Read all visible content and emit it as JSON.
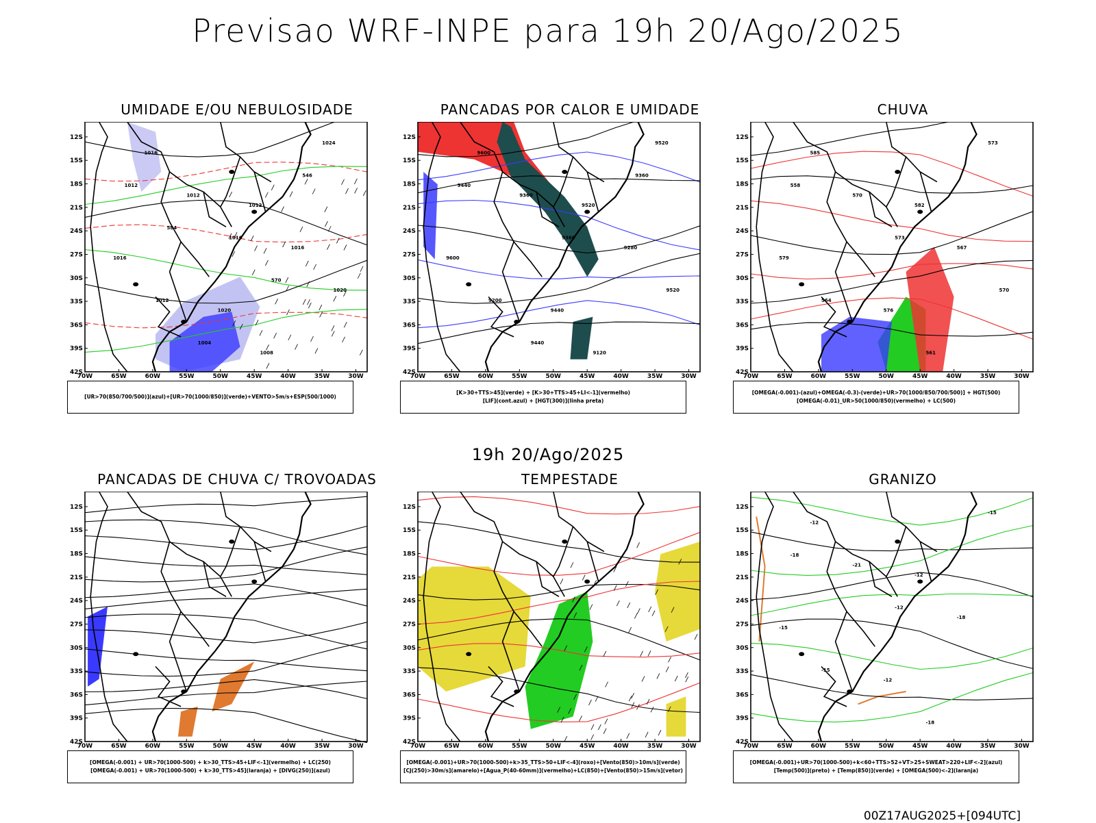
{
  "header": {
    "title": "Previsao WRF-INPE  para 19h 20/Ago/2025",
    "subtitle": "19h 20/Ago/2025",
    "footer": "00Z17AUG2025+[094UTC]"
  },
  "axes": {
    "lat_labels": [
      "12S",
      "15S",
      "18S",
      "21S",
      "24S",
      "27S",
      "30S",
      "33S",
      "36S",
      "39S",
      "42S"
    ],
    "lon_labels": [
      "70W",
      "65W",
      "60W",
      "55W",
      "50W",
      "45W",
      "40W",
      "35W",
      "30W"
    ]
  },
  "panels": [
    {
      "id": "umidade",
      "title": "UMIDADE E/OU NEBULOSIDADE",
      "legend": [
        "[UR>70(850/700/500)](azul)+[UR>70(1000/850)](verde)+VENTO>5m/s+ESP(500/1000)"
      ],
      "labels": [
        "1016",
        "1012",
        "1016",
        "1020",
        "1024",
        "1012",
        "1016",
        "1012",
        "1008",
        "1012",
        "1016",
        "1020",
        "1004",
        "546",
        "584",
        "570"
      ]
    },
    {
      "id": "pancadas-calor",
      "title": "PANCADAS POR CALOR E UMIDADE",
      "legend": [
        "[K>30+TTS>45](verde) + [K>30+TTS>45+LI<-1](vermelho)",
        "[LIF](cont.azul) + [HGT(300)](linha preta)"
      ],
      "labels": [
        "9600",
        "9520",
        "9600",
        "9440",
        "9520",
        "9360",
        "9280",
        "9200",
        "9120",
        "9440",
        "9360",
        "9520",
        "9440",
        "9360"
      ]
    },
    {
      "id": "chuva",
      "title": "CHUVA",
      "legend": [
        "[OMEGA(-0.001)-(azul)+OMEGA(-0.3)-(verde)+UR>70(1000/850/700/500)] + HGT(500)",
        "[OMEGA(-0.01)_UR>50(1000/850)(vermelho) + LC(500)"
      ],
      "labels": [
        "585",
        "582",
        "579",
        "576",
        "573",
        "570",
        "567",
        "564",
        "561",
        "558",
        "573",
        "570"
      ]
    },
    {
      "id": "trovoadas",
      "title": "PANCADAS DE CHUVA C/ TROVOADAS",
      "legend": [
        "[OMEGA(-0.001) + UR>70(1000-500) + k>30_TTS>45+LIF<-1](vermelho) + LC(250)",
        "[OMEGA(-0.001) + UR>70(1000-500) + k>30_TTS>45](laranja) + [DIVG(250)](azul)"
      ],
      "labels": []
    },
    {
      "id": "tempestade",
      "title": "TEMPESTADE",
      "legend": [
        "[OMEGA(-0.001)+UR>70(1000-500)+k>35_TTS>50+LIF<-4](roxo)+[Vento(850)>10m/s](verde)",
        "[CJ(250)>30m/s](amarelo)+[Agua_P(40-60mm)](vermelho)+LC(850)+[Vento(850)>15m/s](vetor)"
      ],
      "labels": []
    },
    {
      "id": "granizo",
      "title": "GRANIZO",
      "legend": [
        "[OMEGA(-0.001)+UR>70(1000-500)+k<60+TTS>52+VT>25+SWEAT>220+LIF<-2](azul)",
        "[Temp(500)](preto) + [Temp(850)](verde) + [OMEGA(500)<-2](laranja)"
      ],
      "labels": [
        "-12",
        "-12",
        "-15",
        "-12",
        "-15",
        "-21",
        "-18",
        "-15",
        "-18",
        "-18",
        "-12"
      ]
    }
  ],
  "colors": {
    "blue": "#3a3aff",
    "lightblue": "#b4b4f0",
    "green": "#22cc22",
    "red": "#ee3333",
    "darkteal": "#1e4d4d",
    "yellow": "#e6d93a",
    "orange": "#e07a30"
  }
}
